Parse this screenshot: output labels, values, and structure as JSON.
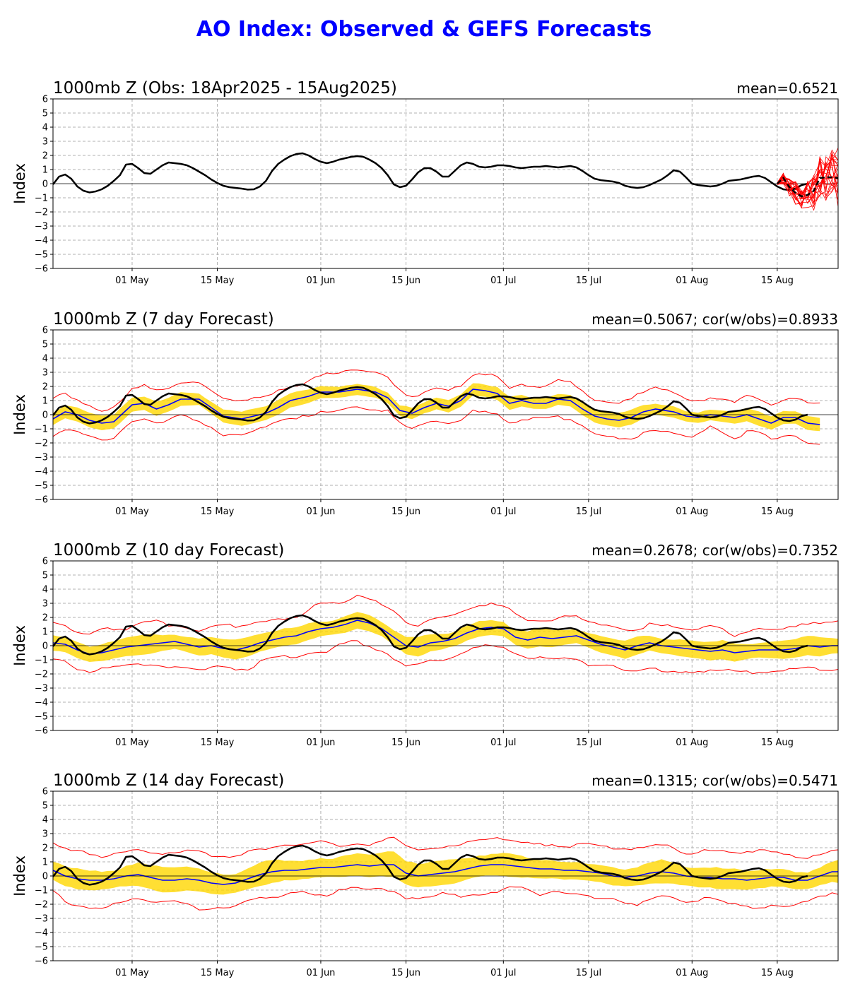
{
  "title": "AO Index: Observed & GEFS Forecasts",
  "title_color": "#0000ff",
  "colors": {
    "observed": "#000000",
    "ensemble_mean": "#0000ff",
    "spread_band": "#ffd700",
    "extremes": "#ff0000",
    "members": "#ff0000",
    "grid": "#b0b0b0"
  },
  "chart_data": [
    {
      "type": "line",
      "panel_title": "1000mb Z (Obs: 18Apr2025 - 15Aug2025)",
      "stats": "mean=0.6521",
      "ylabel": "Index",
      "ylim": [
        -6,
        6
      ],
      "yticks": [
        -6,
        -5,
        -4,
        -3,
        -2,
        -1,
        0,
        1,
        2,
        3,
        4,
        5,
        6
      ],
      "xrange_days": [
        0,
        129
      ],
      "xticks": [
        {
          "day": 13,
          "label": "01 May"
        },
        {
          "day": 27,
          "label": "15 May"
        },
        {
          "day": 44,
          "label": "01 Jun"
        },
        {
          "day": 58,
          "label": "15 Jun"
        },
        {
          "day": 74,
          "label": "01 Jul"
        },
        {
          "day": 88,
          "label": "15 Jul"
        },
        {
          "day": 105,
          "label": "01 Aug"
        },
        {
          "day": 119,
          "label": "15 Aug"
        }
      ],
      "grid": true,
      "observed": {
        "start_day": 0,
        "values": [
          -0.05,
          0.5,
          0.65,
          0.35,
          -0.2,
          -0.5,
          -0.62,
          -0.55,
          -0.4,
          -0.15,
          0.2,
          0.6,
          1.35,
          1.4,
          1.1,
          0.75,
          0.7,
          1.0,
          1.3,
          1.5,
          1.45,
          1.4,
          1.3,
          1.1,
          0.85,
          0.6,
          0.3,
          0.05,
          -0.15,
          -0.25,
          -0.3,
          -0.35,
          -0.42,
          -0.4,
          -0.2,
          0.2,
          0.9,
          1.4,
          1.7,
          1.95,
          2.1,
          2.15,
          2.0,
          1.75,
          1.55,
          1.45,
          1.55,
          1.7,
          1.8,
          1.9,
          1.95,
          1.9,
          1.7,
          1.45,
          1.1,
          0.6,
          -0.05,
          -0.25,
          -0.15,
          0.3,
          0.8,
          1.1,
          1.1,
          0.85,
          0.5,
          0.5,
          0.9,
          1.3,
          1.5,
          1.4,
          1.2,
          1.15,
          1.2,
          1.3,
          1.3,
          1.25,
          1.15,
          1.1,
          1.15,
          1.2,
          1.2,
          1.25,
          1.2,
          1.15,
          1.2,
          1.25,
          1.15,
          0.9,
          0.6,
          0.35,
          0.25,
          0.2,
          0.15,
          0.05,
          -0.15,
          -0.25,
          -0.3,
          -0.25,
          -0.1,
          0.1,
          0.3,
          0.6,
          0.95,
          0.85,
          0.45,
          0.0,
          -0.1,
          -0.15,
          -0.2,
          -0.15,
          0.0,
          0.2,
          0.25,
          0.3,
          0.4,
          0.5,
          0.55,
          0.4,
          0.1,
          -0.2,
          -0.4,
          -0.45,
          -0.35,
          -0.1,
          0.0
        ]
      },
      "forecast_members": {
        "start_day": 119,
        "count": 21,
        "valid_days": [
          119,
          120,
          121,
          122,
          123,
          124,
          125,
          126,
          127,
          128,
          129
        ],
        "ensemble_mean_dashed": [
          0.0,
          0.4,
          -0.25,
          -0.65,
          -0.9,
          -0.8,
          -0.5,
          0.4,
          0.45,
          0.45,
          0.4
        ]
      }
    },
    {
      "type": "area",
      "panel_title": "1000mb Z (7 day Forecast)",
      "stats": "mean=0.5067; cor(w/obs)=0.8933",
      "ylabel": "Index",
      "ylim": [
        -6,
        6
      ],
      "yticks": [
        -6,
        -5,
        -4,
        -3,
        -2,
        -1,
        0,
        1,
        2,
        3,
        4,
        5,
        6
      ],
      "xrange_days": [
        0,
        129
      ],
      "xticks": [
        {
          "day": 13,
          "label": "01 May"
        },
        {
          "day": 27,
          "label": "15 May"
        },
        {
          "day": 44,
          "label": "01 Jun"
        },
        {
          "day": 58,
          "label": "15 Jun"
        },
        {
          "day": 74,
          "label": "01 Jul"
        },
        {
          "day": 88,
          "label": "15 Jul"
        },
        {
          "day": 105,
          "label": "01 Aug"
        },
        {
          "day": 119,
          "label": "15 Aug"
        }
      ],
      "grid": true,
      "forecast_end_day": 126,
      "ensemble_mean_knots": [
        [
          0,
          -0.3
        ],
        [
          2,
          0.2
        ],
        [
          4,
          0.0
        ],
        [
          6,
          -0.4
        ],
        [
          8,
          -0.6
        ],
        [
          10,
          -0.5
        ],
        [
          12,
          0.3
        ],
        [
          13,
          0.7
        ],
        [
          15,
          0.8
        ],
        [
          17,
          0.4
        ],
        [
          19,
          0.7
        ],
        [
          21,
          1.1
        ],
        [
          24,
          1.1
        ],
        [
          26,
          0.5
        ],
        [
          28,
          -0.1
        ],
        [
          31,
          -0.3
        ],
        [
          33,
          -0.1
        ],
        [
          35,
          0.1
        ],
        [
          37,
          0.5
        ],
        [
          39,
          1.0
        ],
        [
          42,
          1.3
        ],
        [
          44,
          1.6
        ],
        [
          47,
          1.6
        ],
        [
          50,
          1.8
        ],
        [
          53,
          1.6
        ],
        [
          55,
          1.2
        ],
        [
          57,
          0.3
        ],
        [
          59,
          0.1
        ],
        [
          61,
          0.5
        ],
        [
          63,
          0.8
        ],
        [
          65,
          0.6
        ],
        [
          67,
          1.0
        ],
        [
          69,
          1.8
        ],
        [
          71,
          1.7
        ],
        [
          73,
          1.5
        ],
        [
          75,
          0.8
        ],
        [
          77,
          1.0
        ],
        [
          79,
          0.8
        ],
        [
          81,
          0.8
        ],
        [
          83,
          1.1
        ],
        [
          85,
          1.0
        ],
        [
          87,
          0.4
        ],
        [
          89,
          -0.1
        ],
        [
          91,
          -0.3
        ],
        [
          93,
          -0.4
        ],
        [
          95,
          -0.2
        ],
        [
          97,
          0.2
        ],
        [
          99,
          0.4
        ],
        [
          102,
          0.2
        ],
        [
          104,
          -0.1
        ],
        [
          106,
          -0.2
        ],
        [
          108,
          0.0
        ],
        [
          110,
          -0.1
        ],
        [
          112,
          -0.2
        ],
        [
          114,
          0.0
        ],
        [
          116,
          -0.3
        ],
        [
          118,
          -0.6
        ],
        [
          120,
          -0.2
        ],
        [
          122,
          -0.2
        ],
        [
          124,
          -0.6
        ],
        [
          126,
          -0.7
        ]
      ],
      "spread_halfwidth": 0.45,
      "extremes_halfwidth": 1.2
    },
    {
      "type": "area",
      "panel_title": "1000mb Z (10 day Forecast)",
      "stats": "mean=0.2678; cor(w/obs)=0.7352",
      "ylabel": "Index",
      "ylim": [
        -6,
        6
      ],
      "yticks": [
        -6,
        -5,
        -4,
        -3,
        -2,
        -1,
        0,
        1,
        2,
        3,
        4,
        5,
        6
      ],
      "xrange_days": [
        0,
        129
      ],
      "xticks": [
        {
          "day": 13,
          "label": "01 May"
        },
        {
          "day": 27,
          "label": "15 May"
        },
        {
          "day": 44,
          "label": "01 Jun"
        },
        {
          "day": 58,
          "label": "15 Jun"
        },
        {
          "day": 74,
          "label": "01 Jul"
        },
        {
          "day": 88,
          "label": "15 Jul"
        },
        {
          "day": 105,
          "label": "01 Aug"
        },
        {
          "day": 119,
          "label": "15 Aug"
        }
      ],
      "grid": true,
      "forecast_end_day": 129,
      "ensemble_mean_knots": [
        [
          0,
          0.2
        ],
        [
          2,
          0.1
        ],
        [
          4,
          -0.3
        ],
        [
          6,
          -0.6
        ],
        [
          8,
          -0.5
        ],
        [
          10,
          -0.3
        ],
        [
          12,
          -0.1
        ],
        [
          14,
          0.0
        ],
        [
          16,
          0.1
        ],
        [
          18,
          0.2
        ],
        [
          20,
          0.3
        ],
        [
          22,
          0.1
        ],
        [
          24,
          -0.1
        ],
        [
          26,
          0.0
        ],
        [
          28,
          -0.2
        ],
        [
          30,
          -0.3
        ],
        [
          32,
          -0.1
        ],
        [
          34,
          0.2
        ],
        [
          36,
          0.4
        ],
        [
          38,
          0.6
        ],
        [
          40,
          0.7
        ],
        [
          42,
          1.0
        ],
        [
          44,
          1.2
        ],
        [
          46,
          1.3
        ],
        [
          48,
          1.5
        ],
        [
          50,
          1.8
        ],
        [
          52,
          1.6
        ],
        [
          54,
          1.2
        ],
        [
          56,
          0.6
        ],
        [
          58,
          0.0
        ],
        [
          60,
          -0.1
        ],
        [
          62,
          0.2
        ],
        [
          64,
          0.3
        ],
        [
          66,
          0.5
        ],
        [
          68,
          0.9
        ],
        [
          70,
          1.2
        ],
        [
          72,
          1.3
        ],
        [
          74,
          1.2
        ],
        [
          76,
          0.6
        ],
        [
          78,
          0.4
        ],
        [
          80,
          0.6
        ],
        [
          82,
          0.5
        ],
        [
          84,
          0.6
        ],
        [
          86,
          0.7
        ],
        [
          88,
          0.4
        ],
        [
          90,
          0.1
        ],
        [
          92,
          -0.1
        ],
        [
          94,
          -0.3
        ],
        [
          96,
          0.0
        ],
        [
          98,
          0.2
        ],
        [
          100,
          0.0
        ],
        [
          102,
          -0.1
        ],
        [
          104,
          -0.2
        ],
        [
          106,
          -0.3
        ],
        [
          108,
          -0.4
        ],
        [
          110,
          -0.3
        ],
        [
          112,
          -0.5
        ],
        [
          114,
          -0.4
        ],
        [
          116,
          -0.3
        ],
        [
          118,
          -0.3
        ],
        [
          120,
          -0.3
        ],
        [
          122,
          -0.2
        ],
        [
          124,
          0.0
        ],
        [
          126,
          -0.1
        ],
        [
          128,
          0.0
        ]
      ],
      "spread_halfwidth": 0.6,
      "extremes_halfwidth": 1.45
    },
    {
      "type": "area",
      "panel_title": "1000mb Z (14 day Forecast)",
      "stats": "mean=0.1315; cor(w/obs)=0.5471",
      "ylabel": "Index",
      "ylim": [
        -6,
        6
      ],
      "yticks": [
        -6,
        -5,
        -4,
        -3,
        -2,
        -1,
        0,
        1,
        2,
        3,
        4,
        5,
        6
      ],
      "xrange_days": [
        0,
        129
      ],
      "xticks": [
        {
          "day": 13,
          "label": "01 May"
        },
        {
          "day": 27,
          "label": "15 May"
        },
        {
          "day": 44,
          "label": "01 Jun"
        },
        {
          "day": 58,
          "label": "15 Jun"
        },
        {
          "day": 74,
          "label": "01 Jul"
        },
        {
          "day": 88,
          "label": "15 Jul"
        },
        {
          "day": 105,
          "label": "01 Aug"
        },
        {
          "day": 119,
          "label": "15 Aug"
        }
      ],
      "grid": true,
      "forecast_end_day": 129,
      "ensemble_mean_knots": [
        [
          0,
          0.4
        ],
        [
          2,
          0.0
        ],
        [
          4,
          -0.2
        ],
        [
          6,
          -0.3
        ],
        [
          8,
          -0.3
        ],
        [
          10,
          -0.2
        ],
        [
          12,
          0.0
        ],
        [
          14,
          0.1
        ],
        [
          16,
          -0.1
        ],
        [
          18,
          -0.3
        ],
        [
          20,
          -0.3
        ],
        [
          22,
          -0.2
        ],
        [
          24,
          -0.3
        ],
        [
          26,
          -0.5
        ],
        [
          28,
          -0.6
        ],
        [
          30,
          -0.5
        ],
        [
          32,
          -0.2
        ],
        [
          34,
          0.1
        ],
        [
          36,
          0.3
        ],
        [
          38,
          0.4
        ],
        [
          40,
          0.4
        ],
        [
          42,
          0.5
        ],
        [
          44,
          0.6
        ],
        [
          46,
          0.6
        ],
        [
          48,
          0.7
        ],
        [
          50,
          0.8
        ],
        [
          52,
          0.7
        ],
        [
          54,
          0.8
        ],
        [
          56,
          0.8
        ],
        [
          58,
          0.2
        ],
        [
          60,
          0.0
        ],
        [
          62,
          0.1
        ],
        [
          64,
          0.2
        ],
        [
          66,
          0.3
        ],
        [
          68,
          0.5
        ],
        [
          70,
          0.7
        ],
        [
          72,
          0.8
        ],
        [
          74,
          0.8
        ],
        [
          76,
          0.7
        ],
        [
          78,
          0.6
        ],
        [
          80,
          0.5
        ],
        [
          82,
          0.5
        ],
        [
          84,
          0.4
        ],
        [
          86,
          0.4
        ],
        [
          88,
          0.3
        ],
        [
          90,
          0.2
        ],
        [
          92,
          0.0
        ],
        [
          94,
          -0.1
        ],
        [
          96,
          0.0
        ],
        [
          98,
          0.2
        ],
        [
          100,
          0.3
        ],
        [
          102,
          0.2
        ],
        [
          104,
          0.0
        ],
        [
          106,
          -0.1
        ],
        [
          108,
          -0.1
        ],
        [
          110,
          -0.2
        ],
        [
          112,
          -0.2
        ],
        [
          114,
          -0.3
        ],
        [
          116,
          -0.2
        ],
        [
          118,
          -0.1
        ],
        [
          120,
          -0.1
        ],
        [
          122,
          -0.3
        ],
        [
          124,
          -0.3
        ],
        [
          126,
          0.0
        ],
        [
          128,
          0.3
        ]
      ],
      "spread_halfwidth": 0.75,
      "extremes_halfwidth": 1.75
    }
  ]
}
